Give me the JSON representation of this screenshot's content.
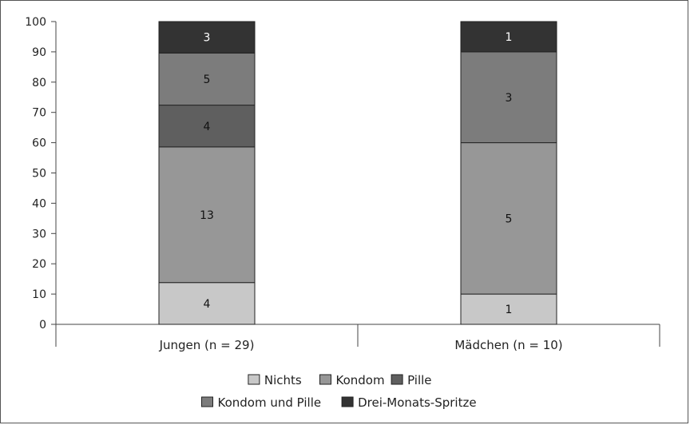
{
  "chart_data": {
    "type": "bar",
    "stacked": true,
    "categories": [
      "Jungen (n = 29)",
      "Mädchen (n = 10)"
    ],
    "ylim": [
      0,
      100
    ],
    "yticks": [
      0,
      10,
      20,
      30,
      40,
      50,
      60,
      70,
      80,
      90,
      100
    ],
    "grid": false,
    "legend_position": "bottom",
    "series": [
      {
        "name": "Nichts",
        "color": "#c8c8c8",
        "values": [
          13.8,
          10
        ],
        "labels": [
          "4",
          "1"
        ]
      },
      {
        "name": "Kondom",
        "color": "#979797",
        "values": [
          44.8,
          50
        ],
        "labels": [
          "13",
          "5"
        ]
      },
      {
        "name": "Pille",
        "color": "#5f5f5f",
        "values": [
          13.8,
          0
        ],
        "labels": [
          "4",
          ""
        ]
      },
      {
        "name": "Kondom und Pille",
        "color": "#7c7c7c",
        "values": [
          17.2,
          30
        ],
        "labels": [
          "5",
          "3"
        ]
      },
      {
        "name": "Drei-Monats-Spritze",
        "color": "#333333",
        "values": [
          10.4,
          10
        ],
        "labels": [
          "3",
          "1"
        ]
      }
    ]
  }
}
